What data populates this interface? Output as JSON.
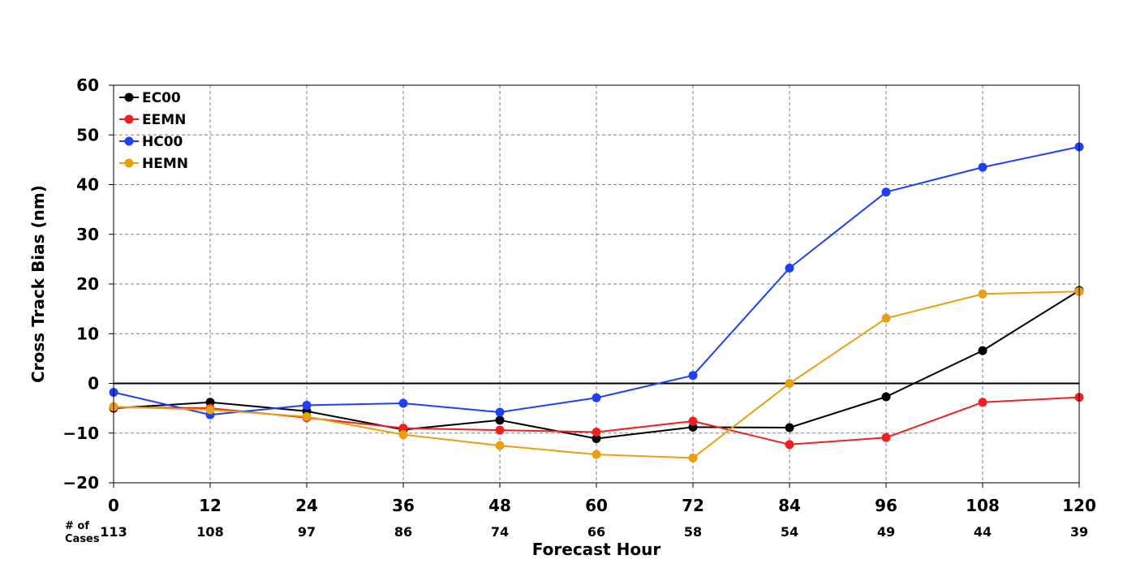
{
  "chart_data": {
    "type": "line",
    "title": "",
    "xlabel": "Forecast Hour",
    "ylabel": "Cross Track Bias (nm)",
    "x": [
      0,
      12,
      24,
      36,
      48,
      60,
      72,
      84,
      96,
      108,
      120
    ],
    "xlim": [
      0,
      120
    ],
    "ylim": [
      -20,
      60
    ],
    "yticks": [
      -20,
      -10,
      0,
      10,
      20,
      30,
      40,
      50,
      60
    ],
    "ytick_labels": [
      "−20",
      "−10",
      "0",
      "10",
      "20",
      "30",
      "40",
      "50",
      "60"
    ],
    "grid": true,
    "legend_position": "top-left",
    "cases_caption": [
      "# of",
      "Cases"
    ],
    "cases": [
      113,
      108,
      97,
      86,
      74,
      66,
      58,
      54,
      49,
      44,
      39
    ],
    "series": [
      {
        "name": "EC00",
        "color": "#000000",
        "values": [
          -5.0,
          -3.8,
          -5.6,
          -9.3,
          -7.4,
          -11.1,
          -8.8,
          -8.9,
          -2.7,
          6.6,
          18.7
        ]
      },
      {
        "name": "EEMN",
        "color": "#f02020",
        "values": [
          -4.8,
          -5.0,
          -6.9,
          -9.0,
          -9.4,
          -9.8,
          -7.6,
          -12.3,
          -10.9,
          -3.8,
          -2.8
        ]
      },
      {
        "name": "HC00",
        "color": "#2040f8",
        "values": [
          -1.8,
          -6.3,
          -4.4,
          -4.0,
          -5.8,
          -2.9,
          1.6,
          23.2,
          38.5,
          43.5,
          47.6
        ]
      },
      {
        "name": "HEMN",
        "color": "#e8a010",
        "values": [
          -4.7,
          -5.3,
          -6.7,
          -10.3,
          -12.5,
          -14.3,
          -15.0,
          0.0,
          13.1,
          18.0,
          18.5
        ]
      }
    ]
  }
}
